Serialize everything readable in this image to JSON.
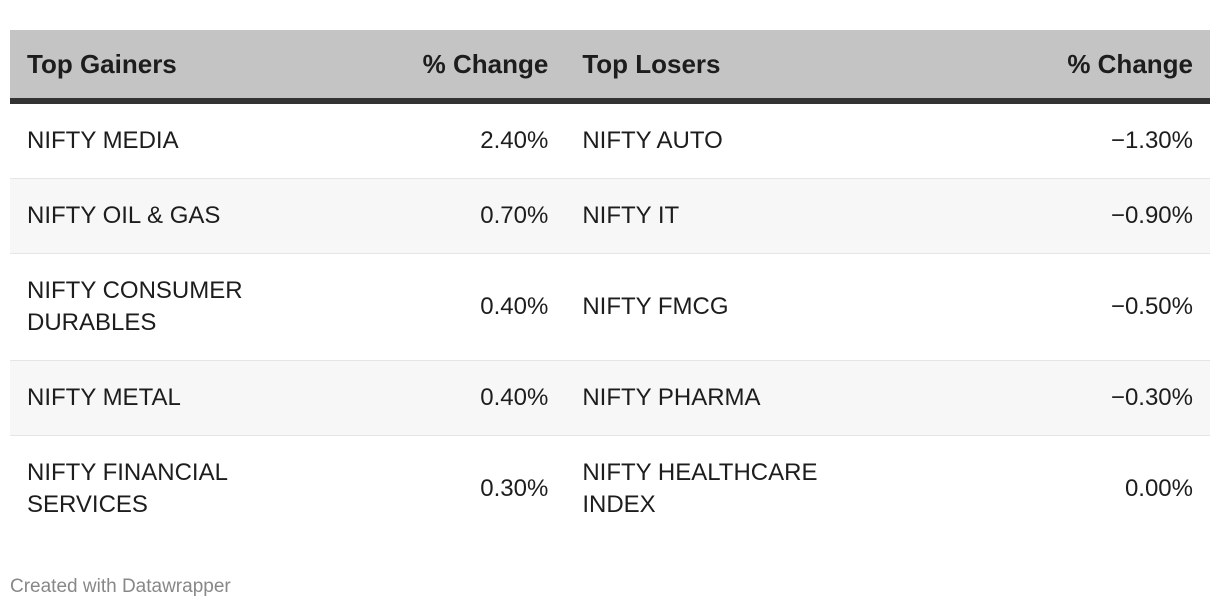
{
  "chart_data": {
    "type": "table",
    "columns": [
      "Top Gainers",
      "% Change",
      "Top Losers",
      "% Change"
    ],
    "rows": [
      [
        "NIFTY MEDIA",
        "2.40%",
        "NIFTY AUTO",
        "−1.30%"
      ],
      [
        "NIFTY OIL & GAS",
        "0.70%",
        "NIFTY IT",
        "−0.90%"
      ],
      [
        "NIFTY CONSUMER DURABLES",
        "0.40%",
        "NIFTY FMCG",
        "−0.50%"
      ],
      [
        "NIFTY METAL",
        "0.40%",
        "NIFTY PHARMA",
        "−0.30%"
      ],
      [
        "NIFTY FINANCIAL SERVICES",
        "0.30%",
        "NIFTY HEALTHCARE INDEX",
        "0.00%"
      ]
    ],
    "colors": {
      "header_bg": "#c4c4c4",
      "header_border": "#333333",
      "stripe": "#f7f7f7"
    }
  },
  "footer": "Created with Datawrapper"
}
